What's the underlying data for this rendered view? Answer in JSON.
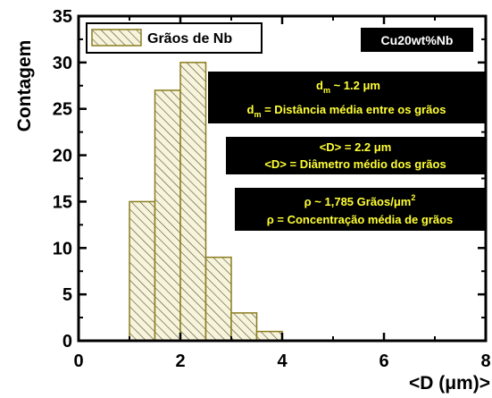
{
  "chart_data": {
    "type": "bar",
    "bins": [
      {
        "from": 1.0,
        "to": 1.5,
        "value": 15
      },
      {
        "from": 1.5,
        "to": 2.0,
        "value": 27
      },
      {
        "from": 2.0,
        "to": 2.5,
        "value": 30
      },
      {
        "from": 2.5,
        "to": 3.0,
        "value": 9
      },
      {
        "from": 3.0,
        "to": 3.5,
        "value": 3
      },
      {
        "from": 3.5,
        "to": 4.0,
        "value": 1
      }
    ],
    "xlim": [
      0,
      8
    ],
    "ylim": [
      0,
      35
    ],
    "xticks": [
      "0",
      "2",
      "4",
      "6",
      "8"
    ],
    "yticks": [
      "0",
      "5",
      "10",
      "15",
      "20",
      "25",
      "30",
      "35"
    ],
    "xlabel": "<D (μm)>",
    "ylabel": "Contagem",
    "legend": {
      "label": "Grãos de Nb",
      "placement": "top-left"
    },
    "bar_style": {
      "fill": "#f7f4d9",
      "stroke": "#8b7d1e",
      "hatch": "#4a4a4a"
    },
    "tag": "Cu20wt%Nb",
    "annotations": {
      "dm": {
        "line1_sym": "d",
        "line1_sub": "m",
        "line1_rest": " ~ 1.2 μm",
        "line2_sym": "d",
        "line2_sub": "m",
        "line2_rest": " = Distância média entre os grãos"
      },
      "D": {
        "line1": "<D> = 2.2 μm",
        "line2": "<D>  = Diâmetro médio dos grãos"
      },
      "rho": {
        "line1_main": "ρ  ~ 1,785 Grãos/μm",
        "line1_sup": "2",
        "line2": "ρ  = Concentração média de grãos"
      }
    }
  }
}
